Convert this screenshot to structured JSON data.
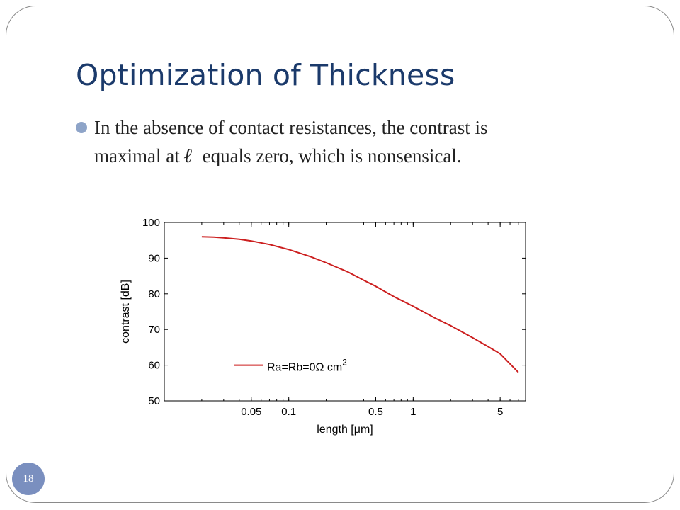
{
  "slide": {
    "title": "Optimization of Thickness",
    "bullet": {
      "line1": "In the absence of contact resistances, the contrast is",
      "line2_before": "maximal at",
      "symbol": "ℓ",
      "line2_after": "equals zero, which is nonsensical."
    },
    "slide_number": "18"
  },
  "chart_data": {
    "type": "line",
    "xlabel": "length [μm]",
    "ylabel": "contrast [dB]",
    "x_scale": "log",
    "xlim": [
      0.01,
      8
    ],
    "ylim": [
      50,
      100
    ],
    "x_ticks": [
      0.05,
      0.1,
      0.5,
      1,
      5
    ],
    "x_tick_labels": [
      "0.05",
      "0.1",
      "0.5",
      "1",
      "5"
    ],
    "y_ticks": [
      50,
      60,
      70,
      80,
      90,
      100
    ],
    "y_tick_labels": [
      "50",
      "60",
      "70",
      "80",
      "90",
      "100"
    ],
    "grid": false,
    "legend": {
      "position": "lower-left",
      "label": "Ra=Rb=0Ω cm",
      "superscript": "2"
    },
    "series": [
      {
        "color": "#cc1f1f",
        "x": [
          0.02,
          0.025,
          0.03,
          0.04,
          0.05,
          0.07,
          0.1,
          0.15,
          0.2,
          0.3,
          0.4,
          0.5,
          0.7,
          1,
          1.5,
          2,
          3,
          4,
          5,
          7
        ],
        "y": [
          96,
          95.9,
          95.7,
          95.3,
          94.8,
          93.8,
          92.4,
          90.4,
          88.7,
          86.1,
          83.8,
          82.1,
          79.2,
          76.5,
          73.2,
          71.1,
          67.7,
          65.2,
          63.2,
          58.0
        ]
      }
    ]
  }
}
